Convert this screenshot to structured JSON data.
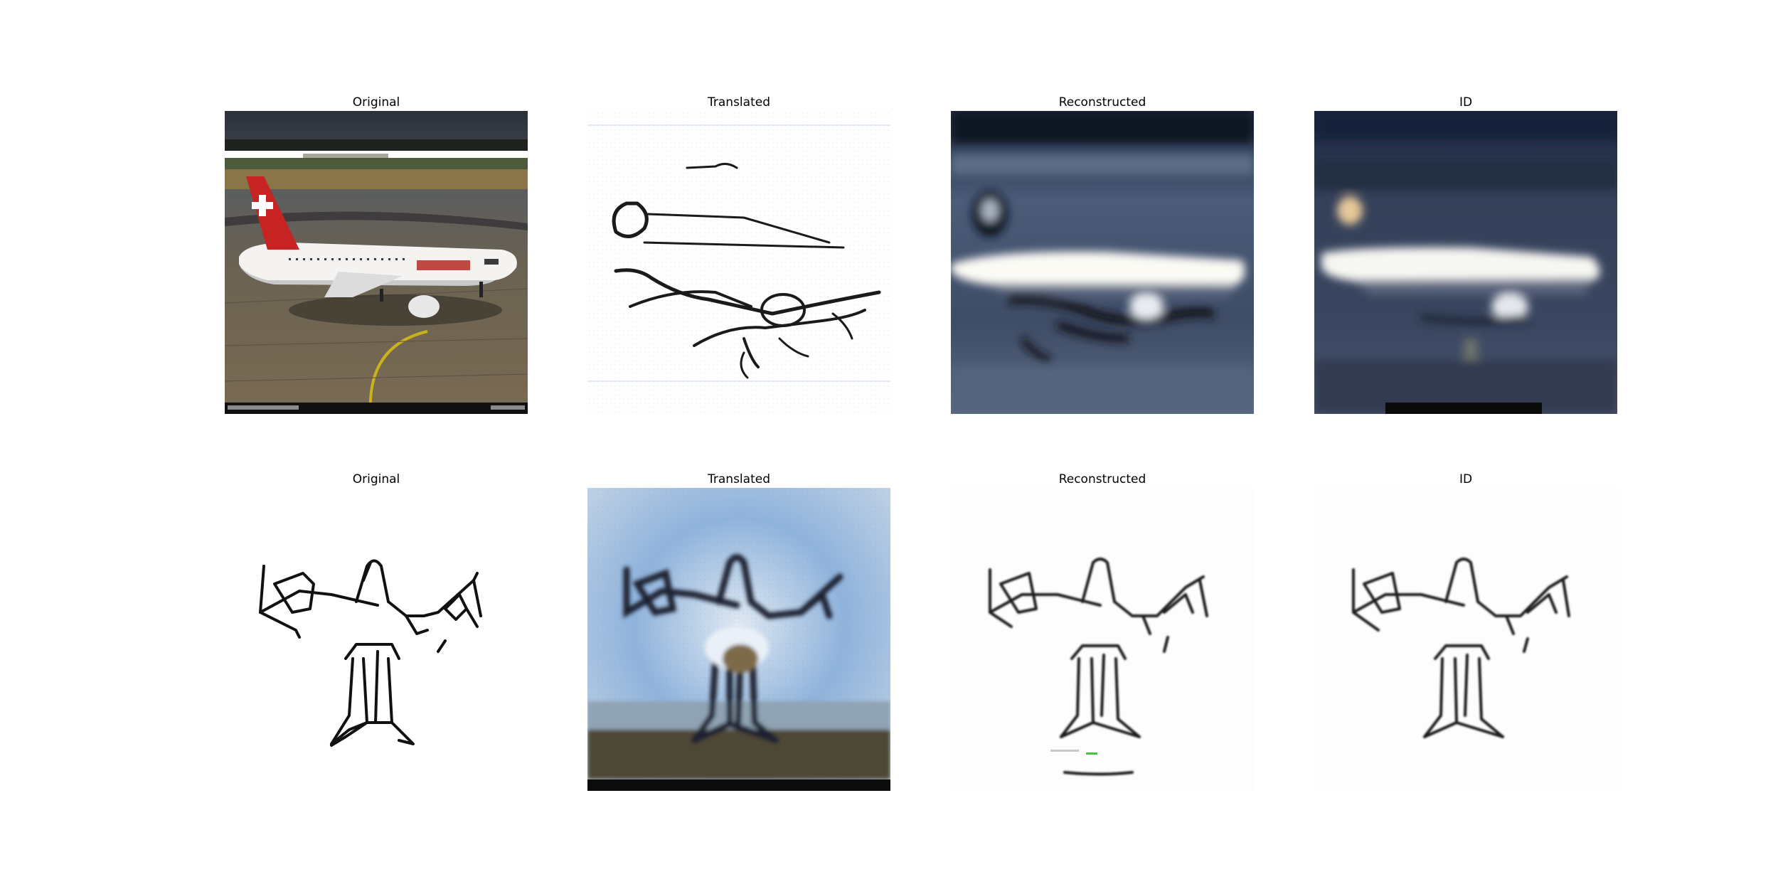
{
  "rows": [
    {
      "panels": [
        {
          "title": "Original",
          "image": "photo of Swissair airliner on tarmac"
        },
        {
          "title": "Translated",
          "image": "sketch-style rendering of airliner"
        },
        {
          "title": "Reconstructed",
          "image": "blurry reconstructed airliner photo"
        },
        {
          "title": "ID",
          "image": "blurry identity-mapped airliner photo"
        }
      ]
    },
    {
      "panels": [
        {
          "title": "Original",
          "image": "black line sketch of airplane"
        },
        {
          "title": "Translated",
          "image": "photo-style rendering of airplane sketch"
        },
        {
          "title": "Reconstructed",
          "image": "reconstructed airplane sketch"
        },
        {
          "title": "ID",
          "image": "identity-mapped airplane sketch"
        }
      ]
    }
  ]
}
